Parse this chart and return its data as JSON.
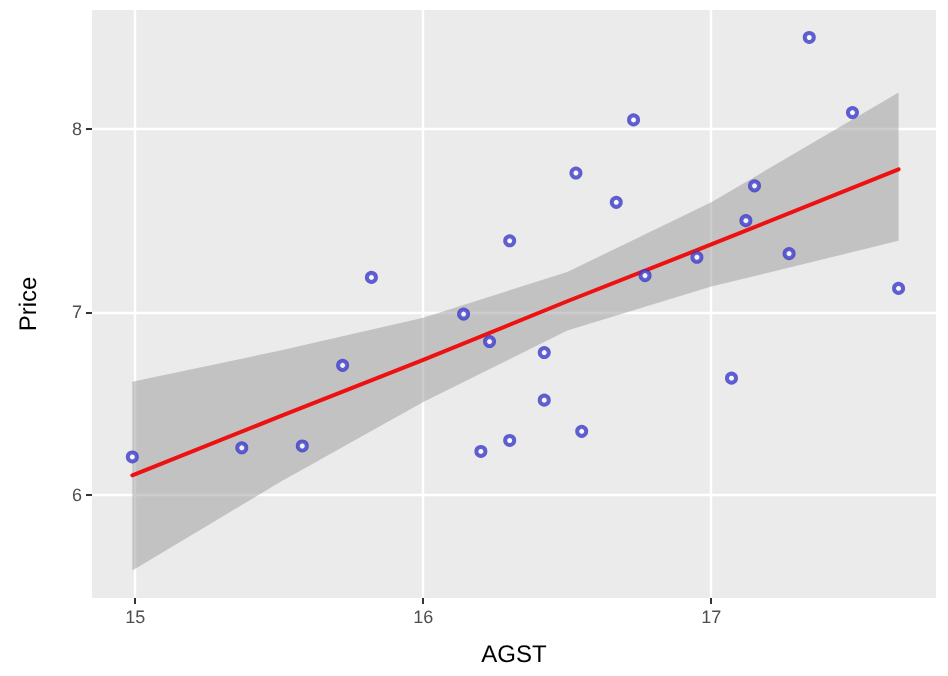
{
  "chart_data": {
    "type": "scatter",
    "xlabel": "AGST",
    "ylabel": "Price",
    "xlim": [
      14.85,
      17.78
    ],
    "ylim": [
      5.44,
      8.65
    ],
    "xticks": [
      15,
      16,
      17
    ],
    "yticks": [
      6,
      7,
      8
    ],
    "grid": true,
    "marker": "circle",
    "series": [
      {
        "color": "#3a3ac8",
        "x": [
          14.99,
          15.37,
          15.58,
          15.72,
          15.82,
          16.14,
          16.2,
          16.23,
          16.3,
          16.3,
          16.42,
          16.42,
          16.53,
          16.55,
          16.67,
          16.73,
          16.77,
          16.95,
          17.07,
          17.12,
          17.15,
          17.27,
          17.34,
          17.49,
          17.65
        ],
        "values": [
          6.21,
          6.26,
          6.27,
          6.71,
          7.19,
          6.99,
          6.24,
          6.84,
          7.39,
          6.3,
          6.78,
          6.52,
          7.76,
          6.35,
          7.6,
          8.05,
          7.2,
          7.3,
          6.64,
          7.5,
          7.69,
          7.32,
          8.5,
          8.09,
          7.13
        ]
      },
      {
        "type": "line",
        "marker": "none",
        "color": "#ee1111",
        "x": [
          14.99,
          15.5,
          16,
          16.5,
          17,
          17.65
        ],
        "values": [
          6.11,
          6.43,
          6.74,
          7.06,
          7.37,
          7.78
        ],
        "lower": [
          5.59,
          6.07,
          6.51,
          6.9,
          7.14,
          7.39
        ],
        "upper": [
          6.62,
          6.79,
          6.97,
          7.22,
          7.6,
          8.2
        ]
      }
    ]
  }
}
